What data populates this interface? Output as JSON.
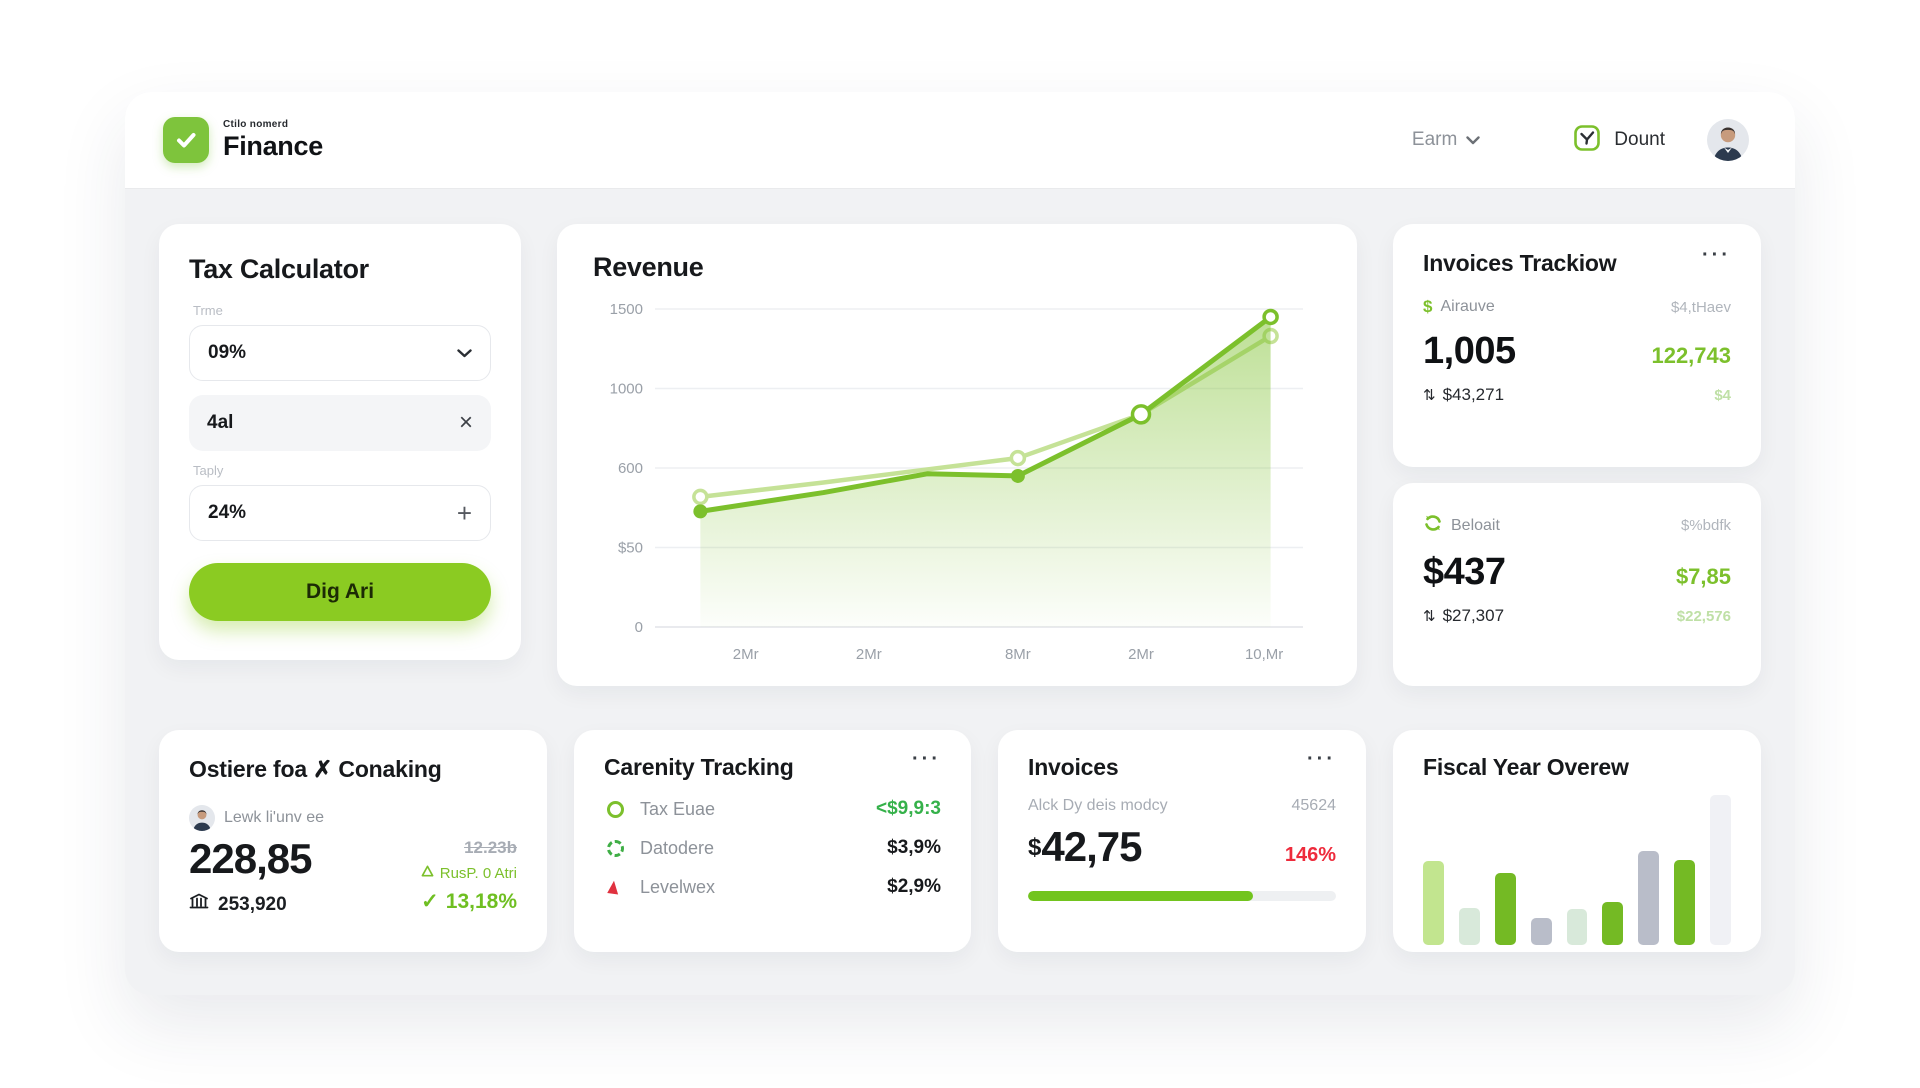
{
  "ui": {
    "menu_dots": "···",
    "updown_icon": "⇅",
    "check_icon": "✓"
  },
  "colors": {
    "primary_green": "#7cc02c",
    "light_line": "#c5e297",
    "button_green": "#8bcb22",
    "red": "#ee2b3c",
    "bar_lightgreen": "#c2e58f",
    "bar_mint": "#d8e9da",
    "bar_green": "#74ba24",
    "bar_gray": "#b9bdc9",
    "bar_ghost": "#f0f1f5"
  },
  "header": {
    "brand_top": "Ctilo nomerd",
    "brand": "Finance",
    "earn_label": "Earm",
    "messages_label": "Dount"
  },
  "tax_calculator": {
    "title": "Tax Calculator",
    "time_label": "Trme",
    "time_value": "09%",
    "amount_value": "4al",
    "apply_label": "Taply",
    "rate_value": "24%",
    "submit_label": "Dig Ari"
  },
  "revenue": {
    "title": "Revenue"
  },
  "invoices_tracking": {
    "title": "Invoices Trackiow",
    "row_label": "Airauve",
    "row_right": "$4,tHaev",
    "main_value": "1,005",
    "main_right": "122,743",
    "sub_value": "$43,271",
    "sub_right": "$4"
  },
  "beloait": {
    "row_label": "Beloait",
    "row_right": "$%bdfk",
    "main_value": "$437",
    "main_right": "$7,85",
    "sub_value": "$27,307",
    "sub_right": "$22,576"
  },
  "ostiere": {
    "title": "Ostiere foa ✗ Conaking",
    "person": "Lewk li'unv ee",
    "main_value": "228,85",
    "sub_value": "253,920",
    "old_value": "12.23b",
    "note": "RusP. 0 Atri",
    "change": "13,18%"
  },
  "carenity": {
    "title": "Carenity Tracking",
    "rows": [
      {
        "name": "Tax Euae",
        "value": "<$9,9:3",
        "green": true,
        "icon": "ring"
      },
      {
        "name": "Datodere",
        "value": "$3,9%",
        "green": false,
        "icon": "ring-dashed"
      },
      {
        "name": "Levelwex",
        "value": "$2,9%",
        "green": false,
        "icon": "triangle"
      }
    ]
  },
  "invoices": {
    "title": "Invoices",
    "row_label": "Alck Dy deis modcy",
    "row_right": "45624",
    "amount_symbol": "$",
    "amount": "42,75",
    "badge": "146%",
    "progress_percent": 73
  },
  "fiscal": {
    "title": "Fiscal Year Overew"
  },
  "chart_data": [
    {
      "type": "line",
      "title": "Revenue",
      "y_tick_labels": [
        "1500",
        "1000",
        "600",
        "$50",
        "0"
      ],
      "y_tick_values": [
        1500,
        1000,
        600,
        50,
        0
      ],
      "x_ticks": [
        "2Mr",
        "2Mr",
        "8Mr",
        "2Mr",
        "10,Mr"
      ],
      "tick_x_percent": [
        14,
        33,
        56,
        75,
        94
      ],
      "point_x_percent": [
        7,
        26,
        42,
        56,
        75,
        95
      ],
      "ylim": [
        0,
        1500
      ],
      "grid": true,
      "series": [
        {
          "name": "secondary",
          "values": [
            400,
            500,
            590,
            650,
            870,
            1330
          ],
          "markers": [
            "open",
            null,
            null,
            "open",
            null,
            "open"
          ],
          "fill": false
        },
        {
          "name": "primary",
          "values": [
            300,
            430,
            560,
            545,
            870,
            1450
          ],
          "markers": [
            "filled",
            null,
            null,
            "filled",
            "open-large",
            "open"
          ],
          "fill": true
        }
      ]
    },
    {
      "type": "bar",
      "title": "Fiscal Year Overew",
      "values": [
        56,
        25,
        48,
        18,
        24,
        29,
        63,
        57,
        100
      ],
      "colors": [
        "bar_lightgreen",
        "bar_mint",
        "bar_green",
        "bar_gray",
        "bar_mint",
        "bar_green",
        "bar_gray",
        "bar_green",
        "bar_ghost"
      ],
      "ylim": [
        0,
        100
      ]
    }
  ]
}
